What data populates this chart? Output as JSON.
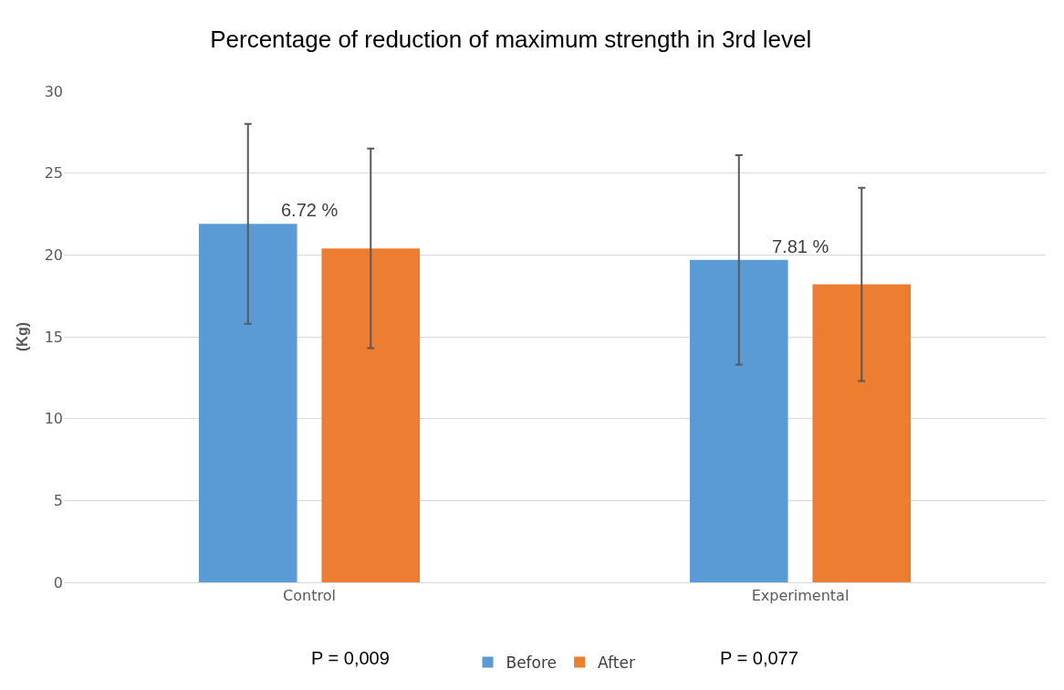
{
  "chart_data": {
    "type": "bar",
    "title": "Percentage of reduction of maximum strength in 3rd level",
    "ylabel": "(Kg)",
    "categories": [
      "Control",
      "Experimental"
    ],
    "series": [
      {
        "name": "Before",
        "color": "#5b9bd5",
        "values": [
          21.9,
          19.7
        ],
        "errors": [
          6.1,
          6.4
        ]
      },
      {
        "name": "After",
        "color": "#ed7d31",
        "values": [
          20.4,
          18.2
        ],
        "errors": [
          6.1,
          5.9
        ]
      }
    ],
    "ylim": [
      0,
      30
    ],
    "yticks": [
      0,
      5,
      10,
      15,
      20,
      25,
      30
    ],
    "grid": "y",
    "legend": "bottom",
    "annotations": [
      "6.72 %",
      "7.81 %",
      "P = 0,009",
      "P = 0,077"
    ]
  }
}
